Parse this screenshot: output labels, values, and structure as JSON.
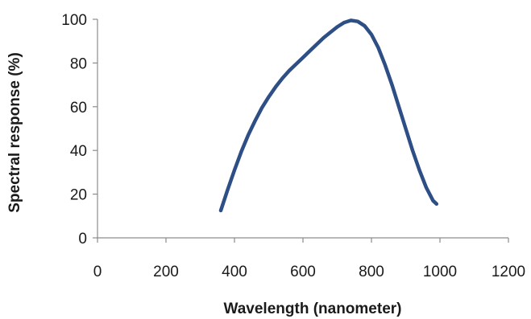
{
  "chart_data": {
    "type": "line",
    "xlabel": "Wavelength (nanometer)",
    "ylabel": "Spectral response (%)",
    "xlim": [
      0,
      1200
    ],
    "ylim": [
      0,
      100
    ],
    "xticks": [
      0,
      200,
      400,
      600,
      800,
      1000,
      1200
    ],
    "yticks": [
      0,
      20,
      40,
      60,
      80,
      100
    ],
    "grid": false,
    "legend": "none",
    "series": [
      {
        "color": "#2e4f86",
        "x": [
          360,
          380,
          400,
          420,
          440,
          460,
          480,
          500,
          520,
          540,
          560,
          580,
          600,
          620,
          640,
          660,
          680,
          700,
          720,
          740,
          760,
          780,
          800,
          820,
          840,
          860,
          880,
          900,
          920,
          940,
          960,
          980,
          990
        ],
        "y": [
          12.5,
          22,
          31,
          39.5,
          47,
          53.5,
          59.5,
          64.5,
          69,
          73,
          76.5,
          79.5,
          82.5,
          85.5,
          88.5,
          91.5,
          94,
          96.5,
          98.5,
          99.5,
          99,
          97,
          93,
          87,
          79,
          70,
          60,
          50,
          40,
          31,
          23,
          17,
          15.5
        ]
      }
    ]
  }
}
